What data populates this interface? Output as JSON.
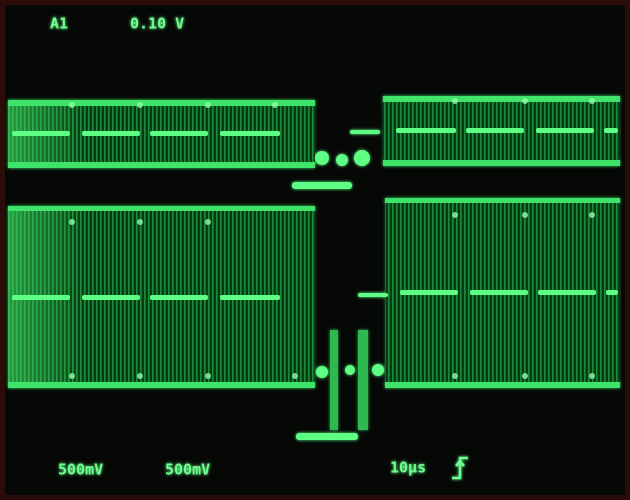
{
  "header": {
    "channel": "A1",
    "trigger_level": "0.10 V"
  },
  "footer": {
    "ch1_scale": "500mV",
    "ch2_scale": "500mV",
    "timebase": "10µs"
  }
}
